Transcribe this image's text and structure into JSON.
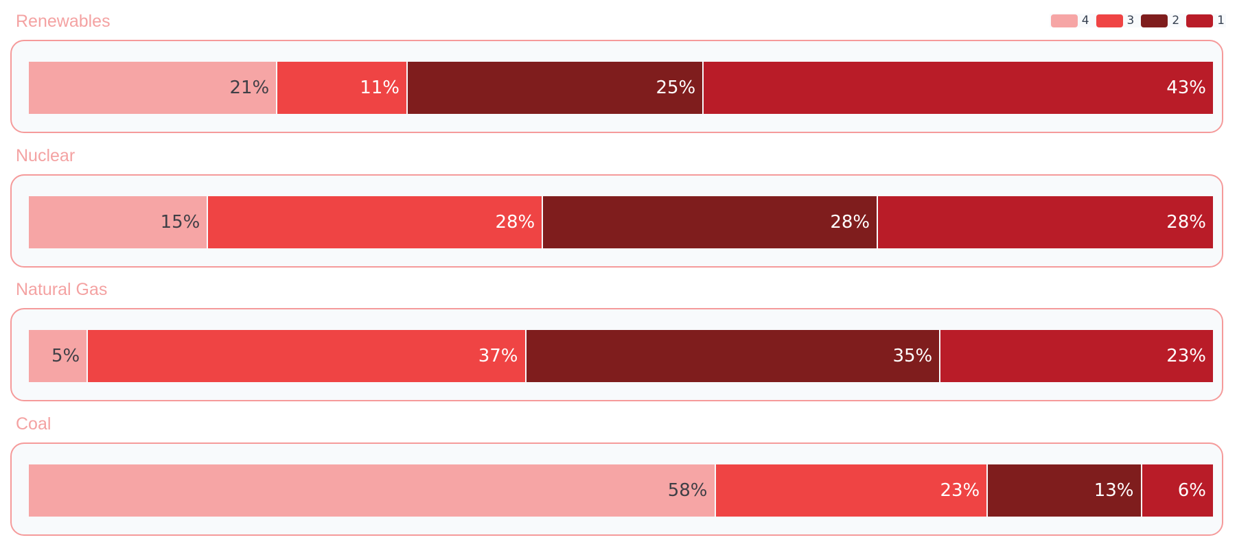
{
  "legend": [
    {
      "label": "4",
      "color": "#f6a5a5"
    },
    {
      "label": "3",
      "color": "#ef4444"
    },
    {
      "label": "2",
      "color": "#7f1d1d"
    },
    {
      "label": "1",
      "color": "#b91c28"
    }
  ],
  "chart_data": {
    "type": "bar",
    "orientation": "horizontal",
    "stacked": true,
    "normalized_percent": true,
    "categories": [
      "Renewables",
      "Nuclear",
      "Natural Gas",
      "Coal"
    ],
    "series": [
      {
        "name": "4",
        "color": "#f6a5a5",
        "values": [
          21,
          15,
          5,
          58
        ]
      },
      {
        "name": "3",
        "color": "#ef4444",
        "values": [
          11,
          28,
          37,
          23
        ]
      },
      {
        "name": "2",
        "color": "#7f1d1d",
        "values": [
          25,
          28,
          35,
          13
        ]
      },
      {
        "name": "1",
        "color": "#b91c28",
        "values": [
          43,
          28,
          23,
          6
        ]
      }
    ],
    "value_labels": [
      [
        "21%",
        "11%",
        "25%",
        "43%"
      ],
      [
        "15%",
        "28%",
        "28%",
        "28%"
      ],
      [
        "5%",
        "37%",
        "35%",
        "23%"
      ],
      [
        "58%",
        "23%",
        "13%",
        "6%"
      ]
    ],
    "legend_position": "top-right"
  }
}
